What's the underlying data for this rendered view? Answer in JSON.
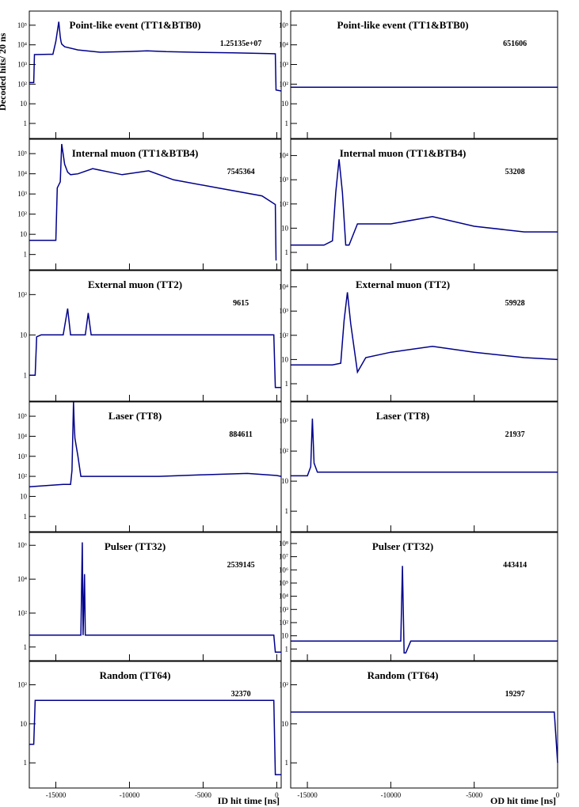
{
  "ylabel": "Decoded hits/ 20 ns",
  "xlabels": {
    "left": "ID hit time [ns]",
    "right": "OD hit time [ns]"
  },
  "x_ticks": [
    "-15000",
    "-10000",
    "-5000",
    "0"
  ],
  "line_color": "#00008b",
  "chart_data": [
    {
      "type": "line",
      "column": "ID",
      "row": 0,
      "title": "Point-like event (TT1&BTB0)",
      "entries": "1.25135e+07",
      "xlim": [
        -16800,
        300
      ],
      "scale": "log",
      "y_ticks": [
        "1",
        "10",
        "10²",
        "10³",
        "10⁴",
        "10⁵"
      ],
      "x": [
        -16800,
        -16500,
        -16450,
        -15500,
        -15200,
        -15000,
        -14800,
        -14700,
        -14650,
        -14600,
        -14400,
        -13500,
        -12000,
        -10000,
        -8800,
        -7500,
        -5000,
        -3000,
        -500,
        -100,
        -50,
        300
      ],
      "y": [
        120,
        120,
        3200,
        3300,
        3300,
        15000,
        150000,
        25000,
        15000,
        11000,
        8000,
        5500,
        4200,
        4600,
        5000,
        4500,
        4100,
        3900,
        3600,
        3500,
        50,
        45
      ]
    },
    {
      "type": "line",
      "column": "OD",
      "row": 0,
      "title": "Point-like event (TT1&BTB0)",
      "entries": "651606",
      "xlim": [
        -16000,
        0
      ],
      "scale": "log",
      "y_ticks": [
        "1",
        "10",
        "10²",
        "10³",
        "10⁴",
        "10⁵"
      ],
      "x": [
        -16000,
        -12000,
        -8000,
        -4000,
        0
      ],
      "y": [
        70,
        70,
        70,
        70,
        70
      ]
    },
    {
      "type": "line",
      "column": "ID",
      "row": 1,
      "title": "Internal muon (TT1&BTB4)",
      "entries": "7545364",
      "xlim": [
        -16800,
        300
      ],
      "scale": "log",
      "y_ticks": [
        "1",
        "10",
        "10²",
        "10³",
        "10⁴",
        "10⁵"
      ],
      "x": [
        -16800,
        -16000,
        -15500,
        -15000,
        -14900,
        -14700,
        -14600,
        -14400,
        -14200,
        -14000,
        -13500,
        -12500,
        -10500,
        -8700,
        -7000,
        -4000,
        -1000,
        -100,
        -50
      ],
      "y": [
        5,
        5,
        5,
        5,
        2000,
        4000,
        300000,
        30000,
        12000,
        9000,
        10000,
        18000,
        9000,
        14000,
        5000,
        2000,
        800,
        300,
        0.5
      ]
    },
    {
      "type": "line",
      "column": "OD",
      "row": 1,
      "title": "Internal muon (TT1&BTB4)",
      "entries": "53208",
      "xlim": [
        -16000,
        0
      ],
      "scale": "log",
      "y_ticks": [
        "1",
        "10",
        "10²",
        "10³",
        "10⁴"
      ],
      "x": [
        -16000,
        -14000,
        -13500,
        -13300,
        -13100,
        -12900,
        -12700,
        -12500,
        -12000,
        -10000,
        -7500,
        -5000,
        -2000,
        0
      ],
      "y": [
        2,
        2,
        3,
        300,
        7000,
        300,
        2,
        2,
        15,
        15,
        30,
        12,
        7,
        7
      ]
    },
    {
      "type": "line",
      "column": "ID",
      "row": 2,
      "title": "External muon (TT2)",
      "entries": "9615",
      "xlim": [
        -16800,
        300
      ],
      "scale": "log",
      "y_ticks": [
        "1",
        "10",
        "10²"
      ],
      "x": [
        -16800,
        -16400,
        -16300,
        -16000,
        -14500,
        -14200,
        -14000,
        -13000,
        -12800,
        -12600,
        -12000,
        -10000,
        -5000,
        -1000,
        -200,
        -100,
        0,
        300
      ],
      "y": [
        1,
        1,
        9,
        10,
        10,
        45,
        10,
        10,
        35,
        10,
        10,
        10,
        10,
        10,
        10,
        0.5,
        0.5,
        0.5
      ]
    },
    {
      "type": "line",
      "column": "OD",
      "row": 2,
      "title": "External muon (TT2)",
      "entries": "59928",
      "xlim": [
        -16000,
        0
      ],
      "scale": "log",
      "y_ticks": [
        "1",
        "10",
        "10²",
        "10³",
        "10⁴"
      ],
      "x": [
        -16000,
        -13500,
        -13000,
        -12800,
        -12600,
        -12400,
        -12000,
        -11500,
        -10000,
        -7500,
        -5000,
        -2000,
        0
      ],
      "y": [
        6,
        6,
        7,
        400,
        6000,
        300,
        3,
        12,
        20,
        35,
        20,
        12,
        10
      ]
    },
    {
      "type": "line",
      "column": "ID",
      "row": 3,
      "title": "Laser (TT8)",
      "entries": "884611",
      "xlim": [
        -16800,
        300
      ],
      "scale": "log",
      "y_ticks": [
        "1",
        "10",
        "10²",
        "10³",
        "10⁴",
        "10⁵"
      ],
      "x": [
        -16800,
        -14500,
        -14000,
        -13900,
        -13800,
        -13750,
        -13700,
        -13500,
        -13300,
        -13000,
        -10000,
        -8000,
        -5000,
        -2000,
        0,
        300
      ],
      "y": [
        30,
        40,
        40,
        200,
        500000,
        40000,
        8000,
        1000,
        100,
        100,
        100,
        100,
        120,
        140,
        110,
        100
      ]
    },
    {
      "type": "line",
      "column": "OD",
      "row": 3,
      "title": "Laser (TT8)",
      "entries": "21937",
      "xlim": [
        -16000,
        0
      ],
      "scale": "log",
      "y_ticks": [
        "1",
        "10",
        "10²",
        "10³"
      ],
      "x": [
        -16000,
        -15000,
        -14800,
        -14700,
        -14600,
        -14400,
        -14200,
        -12000,
        -8000,
        -4000,
        0
      ],
      "y": [
        15,
        15,
        30,
        1200,
        40,
        20,
        20,
        20,
        20,
        20,
        20
      ]
    },
    {
      "type": "line",
      "column": "ID",
      "row": 4,
      "title": "Pulser (TT32)",
      "entries": "2539145",
      "xlim": [
        -16800,
        300
      ],
      "scale": "log",
      "y_ticks": [
        "1",
        "10²",
        "10⁴",
        "10⁶"
      ],
      "x": [
        -16800,
        -13400,
        -13300,
        -13200,
        -13150,
        -13050,
        -13000,
        -12900,
        -10000,
        -5000,
        -500,
        -200,
        -100,
        300
      ],
      "y": [
        5,
        5,
        5,
        1500000,
        5,
        20000,
        5,
        5,
        5,
        5,
        5,
        5,
        0.5,
        0.5
      ]
    },
    {
      "type": "line",
      "column": "OD",
      "row": 4,
      "title": "Pulser (TT32)",
      "entries": "443414",
      "xlim": [
        -16000,
        0
      ],
      "scale": "log",
      "y_ticks": [
        "1",
        "10",
        "10²",
        "10³",
        "10⁴",
        "10⁵",
        "10⁶",
        "10⁷",
        "10⁸"
      ],
      "x": [
        -16000,
        -12000,
        -9400,
        -9300,
        -9200,
        -9100,
        -8800,
        -5000,
        0
      ],
      "y": [
        4,
        4,
        4,
        2000000,
        0.5,
        0.5,
        4,
        4,
        4
      ]
    },
    {
      "type": "line",
      "column": "ID",
      "row": 5,
      "title": "Random (TT64)",
      "entries": "32370",
      "xlim": [
        -16800,
        300
      ],
      "scale": "log",
      "y_ticks": [
        "1",
        "10",
        "10²"
      ],
      "x": [
        -16800,
        -16600,
        -16500,
        -16400,
        -12000,
        -8000,
        -5000,
        -1000,
        -200,
        -100,
        300
      ],
      "y": [
        3,
        3,
        3,
        40,
        40,
        40,
        40,
        40,
        40,
        0.5,
        0.5
      ]
    },
    {
      "type": "line",
      "column": "OD",
      "row": 5,
      "title": "Random (TT64)",
      "entries": "19297",
      "xlim": [
        -16000,
        0
      ],
      "scale": "log",
      "y_ticks": [
        "1",
        "10",
        "10²"
      ],
      "x": [
        -16000,
        -12000,
        -8000,
        -4000,
        -200,
        0
      ],
      "y": [
        20,
        20,
        20,
        20,
        20,
        1
      ]
    }
  ]
}
